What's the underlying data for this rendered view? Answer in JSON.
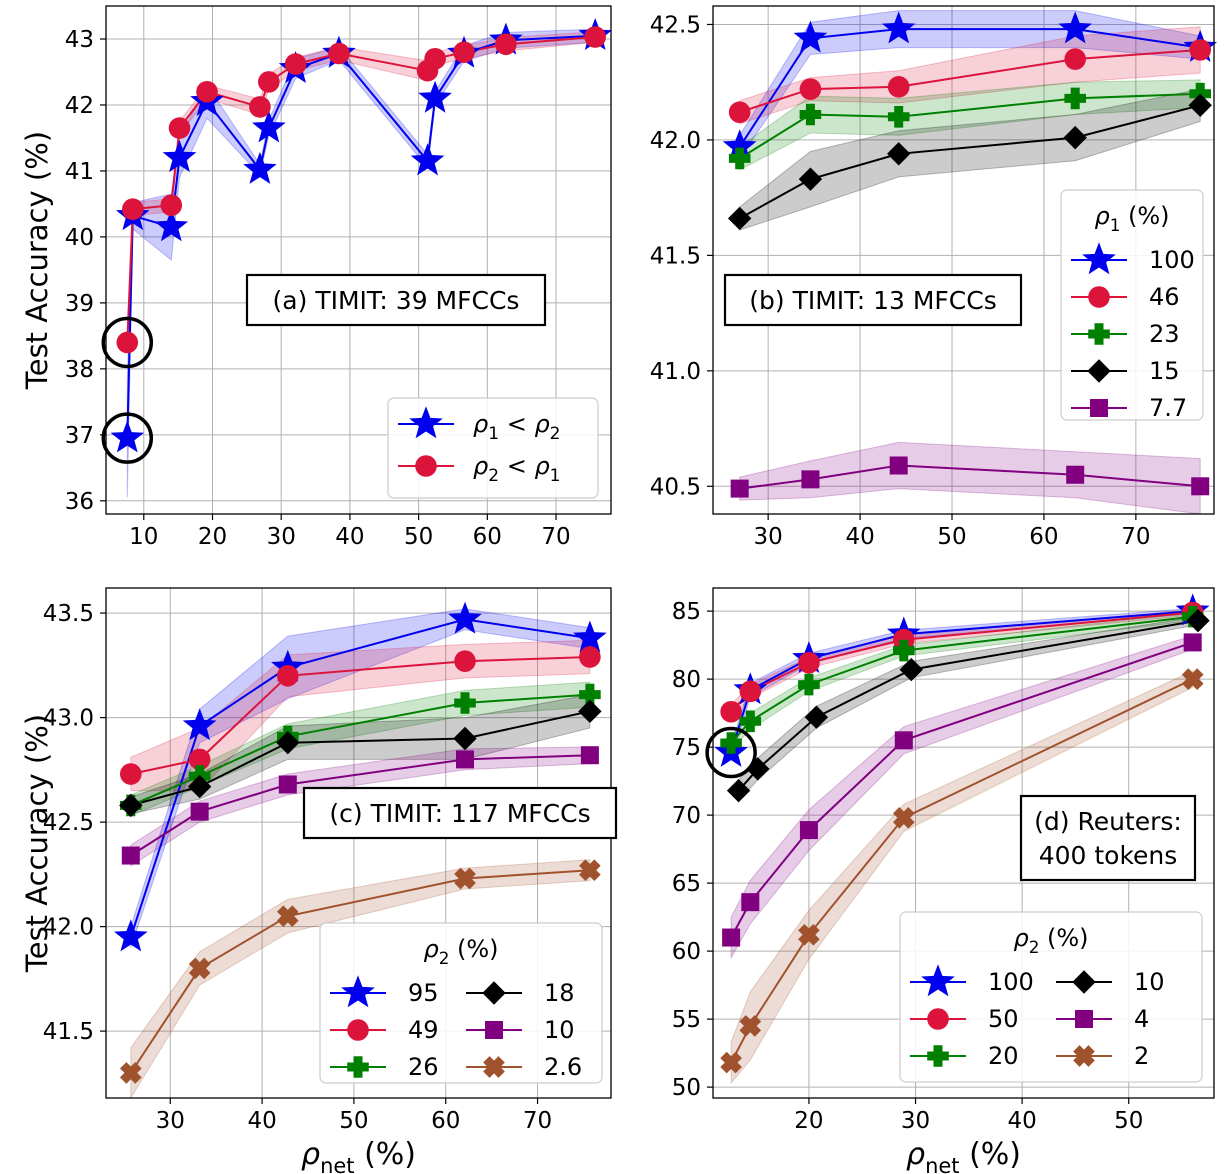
{
  "figure": {
    "ylabel": "Test Accuracy (%)",
    "xlabel_prefix": "ρ",
    "xlabel_sub": "net",
    "xlabel_suffix": " (%)"
  },
  "chart_data": [
    {
      "id": "a",
      "type": "line",
      "annotation": [
        "(a) TIMIT: 39 MFCCs"
      ],
      "xlim": [
        4.5,
        78
      ],
      "ylim": [
        35.8,
        43.5
      ],
      "xticks": [
        10,
        20,
        30,
        40,
        50,
        60,
        70
      ],
      "yticks": [
        36,
        37,
        38,
        39,
        40,
        41,
        42,
        43
      ],
      "ytick_decimals": 0,
      "show_ylabel": true,
      "show_xlabel": false,
      "legend": {
        "position": "lower-right",
        "columns": 1,
        "title": ""
      },
      "circles": [
        {
          "x": 7.6,
          "y": 38.4
        },
        {
          "x": 7.6,
          "y": 36.95
        }
      ],
      "series": [
        {
          "name": "ρ1 < ρ2",
          "color": "#0000ee",
          "marker": "star",
          "x": [
            7.6,
            8.4,
            14,
            15.2,
            19.2,
            26.9,
            28.2,
            32.1,
            38.4,
            51.3,
            52.4,
            56.6,
            62.7,
            75.7
          ],
          "y": [
            36.95,
            40.32,
            40.15,
            41.2,
            42.05,
            41.02,
            41.65,
            42.55,
            42.78,
            41.15,
            42.1,
            42.78,
            42.98,
            43.05
          ],
          "band": [
            0.9,
            0.2,
            0.5,
            0.3,
            0.25,
            0.08,
            0.12,
            0.15,
            0.1,
            0.1,
            0.1,
            0.12,
            0.12,
            0.1
          ]
        },
        {
          "name": "ρ2 < ρ1",
          "color": "#dc143c",
          "marker": "circle",
          "x": [
            7.6,
            8.4,
            14,
            15.2,
            19.2,
            26.9,
            28.2,
            32.1,
            38.4,
            51.3,
            52.4,
            56.6,
            62.7,
            75.7
          ],
          "y": [
            38.4,
            40.42,
            40.48,
            41.65,
            42.2,
            41.97,
            42.35,
            42.62,
            42.78,
            42.52,
            42.7,
            42.8,
            42.92,
            43.03
          ],
          "band": [
            0.1,
            0.1,
            0.1,
            0.1,
            0.1,
            0.12,
            0.12,
            0.1,
            0.1,
            0.15,
            0.1,
            0.1,
            0.1,
            0.08
          ]
        }
      ]
    },
    {
      "id": "b",
      "type": "line",
      "annotation": [
        "(b) TIMIT: 13 MFCCs"
      ],
      "xlim": [
        24,
        78.5
      ],
      "ylim": [
        40.38,
        42.58
      ],
      "xticks": [
        30,
        40,
        50,
        60,
        70
      ],
      "yticks": [
        40.5,
        41.0,
        41.5,
        42.0,
        42.5
      ],
      "ytick_decimals": 1,
      "show_ylabel": false,
      "show_xlabel": false,
      "legend": {
        "position": "right",
        "columns": 1,
        "title": "ρ1 (%)"
      },
      "circles": [],
      "series": [
        {
          "name": "100",
          "color": "#0000ee",
          "marker": "star",
          "x": [
            26.9,
            34.6,
            44.2,
            63.4,
            77
          ],
          "y": [
            41.97,
            42.44,
            42.48,
            42.48,
            42.4
          ],
          "band": [
            0.05,
            0.07,
            0.08,
            0.08,
            0.05
          ]
        },
        {
          "name": "46",
          "color": "#dc143c",
          "marker": "circle",
          "x": [
            26.9,
            34.6,
            44.2,
            63.4,
            77
          ],
          "y": [
            42.12,
            42.22,
            42.23,
            42.35,
            42.39
          ],
          "band": [
            0.05,
            0.05,
            0.07,
            0.1,
            0.1
          ]
        },
        {
          "name": "23",
          "color": "#008000",
          "marker": "plus",
          "x": [
            26.9,
            34.6,
            44.2,
            63.4,
            77
          ],
          "y": [
            41.92,
            42.11,
            42.1,
            42.18,
            42.2
          ],
          "band": [
            0.05,
            0.08,
            0.08,
            0.07,
            0.06
          ]
        },
        {
          "name": "15",
          "color": "#000000",
          "marker": "diamond",
          "x": [
            26.9,
            34.6,
            44.2,
            63.4,
            77
          ],
          "y": [
            41.66,
            41.83,
            41.94,
            42.01,
            42.15
          ],
          "band": [
            0.05,
            0.12,
            0.1,
            0.1,
            0.07
          ]
        },
        {
          "name": "7.7",
          "color": "#800080",
          "marker": "square",
          "x": [
            26.9,
            34.6,
            44.2,
            63.4,
            77
          ],
          "y": [
            40.49,
            40.53,
            40.59,
            40.55,
            40.5
          ],
          "band": [
            0.05,
            0.08,
            0.1,
            0.1,
            0.12
          ]
        }
      ]
    },
    {
      "id": "c",
      "type": "line",
      "annotation": [
        "(c) TIMIT: 117 MFCCs"
      ],
      "xlim": [
        23,
        78
      ],
      "ylim": [
        41.18,
        43.62
      ],
      "xticks": [
        30,
        40,
        50,
        60,
        70
      ],
      "yticks": [
        41.5,
        42.0,
        42.5,
        43.0,
        43.5
      ],
      "ytick_decimals": 1,
      "show_ylabel": true,
      "show_xlabel": true,
      "legend": {
        "position": "lower-right",
        "columns": 2,
        "title": "ρ2 (%)"
      },
      "circles": [],
      "series": [
        {
          "name": "95",
          "color": "#0000ee",
          "marker": "star",
          "x": [
            25.7,
            33.2,
            42.8,
            62.1,
            75.7
          ],
          "y": [
            41.95,
            42.96,
            43.24,
            43.47,
            43.38
          ],
          "band": [
            0.05,
            0.08,
            0.15,
            0.05,
            0.05
          ]
        },
        {
          "name": "49",
          "color": "#dc143c",
          "marker": "circle",
          "x": [
            25.7,
            33.2,
            42.8,
            62.1,
            75.7
          ],
          "y": [
            42.73,
            42.8,
            43.2,
            43.27,
            43.29
          ],
          "band": [
            0.08,
            0.15,
            0.1,
            0.08,
            0.08
          ]
        },
        {
          "name": "26",
          "color": "#008000",
          "marker": "plus",
          "x": [
            25.7,
            33.2,
            42.8,
            62.1,
            75.7
          ],
          "y": [
            42.58,
            42.72,
            42.91,
            43.07,
            43.11
          ],
          "band": [
            0.05,
            0.05,
            0.06,
            0.06,
            0.06
          ]
        },
        {
          "name": "18",
          "color": "#000000",
          "marker": "diamond",
          "x": [
            25.7,
            33.2,
            42.8,
            62.1,
            75.7
          ],
          "y": [
            42.58,
            42.67,
            42.88,
            42.9,
            43.03
          ],
          "band": [
            0.04,
            0.06,
            0.08,
            0.1,
            0.08
          ]
        },
        {
          "name": "10",
          "color": "#800080",
          "marker": "square",
          "x": [
            25.7,
            33.2,
            42.8,
            62.1,
            75.7
          ],
          "y": [
            42.34,
            42.55,
            42.68,
            42.8,
            42.82
          ],
          "band": [
            0.05,
            0.05,
            0.05,
            0.05,
            0.04
          ]
        },
        {
          "name": "2.6",
          "color": "#a0522d",
          "marker": "x",
          "x": [
            25.7,
            33.2,
            42.8,
            62.1,
            75.7
          ],
          "y": [
            41.3,
            41.8,
            42.05,
            42.23,
            42.27
          ],
          "band": [
            0.12,
            0.08,
            0.08,
            0.05,
            0.05
          ]
        }
      ]
    },
    {
      "id": "d",
      "type": "line",
      "annotation": [
        "(d) Reuters:",
        "400 tokens"
      ],
      "xlim": [
        11,
        58
      ],
      "ylim": [
        49.2,
        86.7
      ],
      "xticks": [
        20,
        30,
        40,
        50
      ],
      "yticks": [
        50,
        55,
        60,
        65,
        70,
        75,
        80,
        85
      ],
      "ytick_decimals": 0,
      "show_ylabel": false,
      "show_xlabel": true,
      "legend": {
        "position": "lower-right",
        "columns": 2,
        "title": "ρ2 (%)"
      },
      "circles": [
        {
          "x": 12.7,
          "y": 74.6
        }
      ],
      "series": [
        {
          "name": "100",
          "color": "#0000ee",
          "marker": "star",
          "x": [
            12.7,
            14.5,
            20,
            28.9,
            56
          ],
          "y": [
            74.6,
            79.2,
            81.5,
            83.3,
            85
          ],
          "band": [
            0.5,
            0.5,
            0.4,
            0.3,
            0.2
          ]
        },
        {
          "name": "50",
          "color": "#dc143c",
          "marker": "circle",
          "x": [
            12.7,
            14.5,
            20,
            28.9,
            56
          ],
          "y": [
            77.6,
            79.1,
            81.2,
            82.9,
            84.9
          ],
          "band": [
            0.5,
            0.5,
            0.4,
            0.3,
            0.2
          ]
        },
        {
          "name": "20",
          "color": "#008000",
          "marker": "plus",
          "x": [
            12.7,
            14.5,
            20,
            28.9,
            56
          ],
          "y": [
            75.3,
            76.9,
            79.6,
            82.1,
            84.6
          ],
          "band": [
            0.5,
            0.6,
            0.5,
            0.4,
            0.3
          ]
        },
        {
          "name": "10",
          "color": "#000000",
          "marker": "diamond",
          "x": [
            13.4,
            15.2,
            20.7,
            29.6,
            56.5
          ],
          "y": [
            71.8,
            73.4,
            77.2,
            80.7,
            84.3
          ],
          "band": [
            0.8,
            0.8,
            0.8,
            0.6,
            0.3
          ]
        },
        {
          "name": "4",
          "color": "#800080",
          "marker": "square",
          "x": [
            12.7,
            14.5,
            20,
            28.9,
            56
          ],
          "y": [
            61,
            63.6,
            68.9,
            75.5,
            82.7
          ],
          "band": [
            1.5,
            1.6,
            1.5,
            1.0,
            0.5
          ]
        },
        {
          "name": "2",
          "color": "#a0522d",
          "marker": "x",
          "x": [
            12.7,
            14.5,
            20,
            28.9,
            56
          ],
          "y": [
            51.8,
            54.5,
            61.2,
            69.8,
            80
          ],
          "band": [
            1.5,
            2.5,
            1.8,
            1.0,
            0.6
          ]
        }
      ]
    }
  ]
}
